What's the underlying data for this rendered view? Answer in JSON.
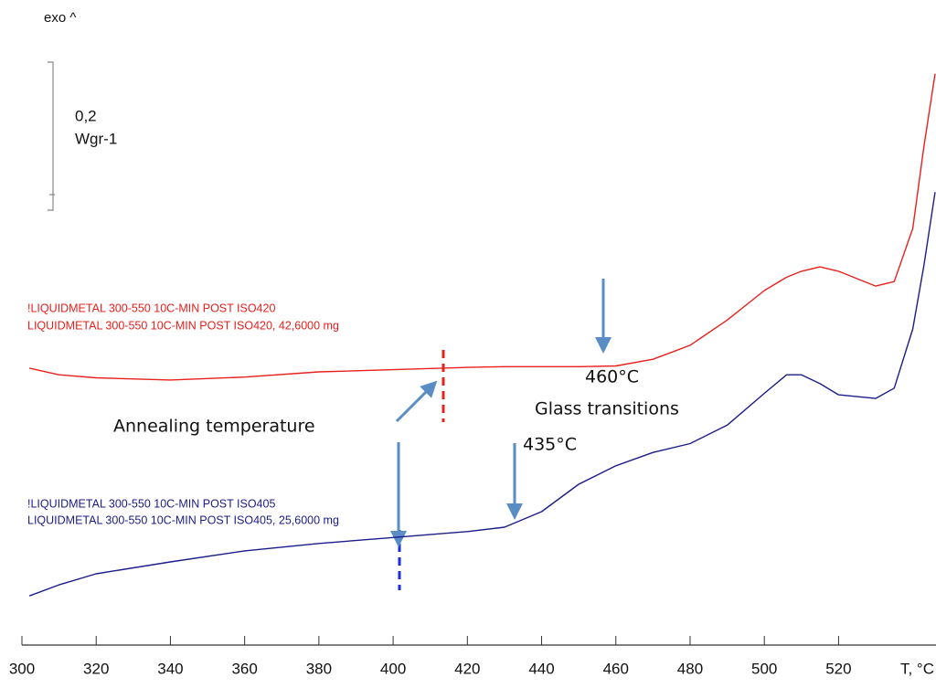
{
  "chart_data": {
    "type": "line",
    "top_label": "exo ^",
    "scale_bar": {
      "value": "0,2",
      "unit": "Wgr-1"
    },
    "x_label": "T, °C",
    "x": [
      302,
      310,
      320,
      340,
      360,
      380,
      400,
      420,
      430,
      440,
      450,
      460,
      470,
      480,
      490,
      500,
      506,
      510,
      515,
      520,
      530,
      535,
      540,
      543,
      546
    ],
    "series": [
      {
        "name": "!LIQUIDMETAL 300-550 10C-MIN POST ISO420",
        "description": "LIQUIDMETAL 300-550 10C-MIN POST ISO420, 42,6000 mg",
        "color": "#e8201e",
        "values": [
          0.367,
          0.358,
          0.354,
          0.351,
          0.355,
          0.362,
          0.365,
          0.368,
          0.369,
          0.369,
          0.369,
          0.37,
          0.379,
          0.398,
          0.432,
          0.472,
          0.49,
          0.498,
          0.504,
          0.498,
          0.478,
          0.484,
          0.556,
          0.667,
          0.765
        ]
      },
      {
        "name": "!LIQUIDMETAL 300-550 10C-MIN POST ISO405",
        "description": "LIQUIDMETAL 300-550 10C-MIN POST ISO405, 25,6000 mg",
        "color": "#1c1c8a",
        "values": [
          0.059,
          0.074,
          0.089,
          0.105,
          0.12,
          0.13,
          0.138,
          0.146,
          0.152,
          0.173,
          0.21,
          0.235,
          0.253,
          0.265,
          0.29,
          0.333,
          0.358,
          0.358,
          0.346,
          0.331,
          0.326,
          0.34,
          0.42,
          0.506,
          0.605
        ]
      }
    ],
    "annotations": {
      "annealing": "Annealing temperature",
      "tg_red": "460°C",
      "glass": "Glass transitions",
      "tg_blue": "435°C"
    },
    "xlim": [
      300,
      546
    ],
    "xticks": [
      300,
      320,
      340,
      360,
      380,
      400,
      420,
      440,
      460,
      480,
      500,
      520
    ],
    "ylim": [
      0,
      0.85
    ]
  }
}
